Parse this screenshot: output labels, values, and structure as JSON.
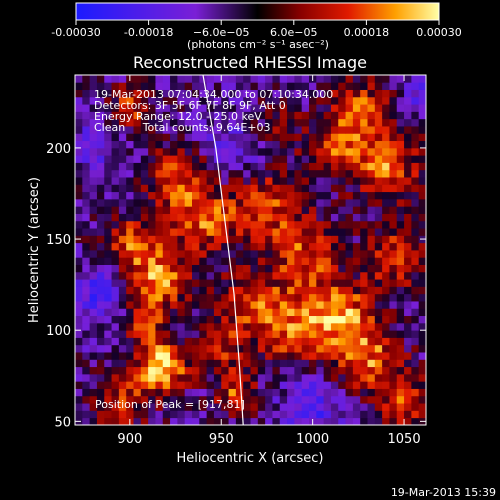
{
  "chart_data": {
    "type": "heatmap",
    "title": "Reconstructed RHESSI Image",
    "xlabel": "Heliocentric X (arcsec)",
    "ylabel": "Heliocentric Y (arcsec)",
    "xlim": [
      870,
      1062
    ],
    "ylim": [
      48,
      240
    ],
    "x_ticks": [
      900,
      950,
      1000,
      1050
    ],
    "y_ticks": [
      50,
      100,
      150,
      200
    ],
    "colorbar": {
      "range": [
        -0.0003,
        0.0003
      ],
      "tick_values": [
        -0.0003,
        -0.00018,
        -6e-05,
        6e-05,
        0.00018,
        0.0003
      ],
      "tick_labels": [
        "-0.00030",
        "-0.00018",
        "−6.0e−05",
        "6.0e−05",
        "0.00018",
        "0.00030"
      ],
      "units_label": "(photons cm⁻² s⁻¹ asec⁻²)"
    },
    "annotations": [
      "19-Mar-2013 07:04:34.000 to 07:10:34.000",
      "Detectors: 3F 5F 6F 7F 8F 9F, Att 0",
      "Energy Range: 12.0 - 25.0 keV",
      "Clean     Total counts: 9.64E+03"
    ],
    "peak_label": "Position of Peak = [917,81]",
    "peak": [
      917,
      81
    ],
    "limb_curve": [
      [
        940,
        240
      ],
      [
        947,
        200
      ],
      [
        952,
        160
      ],
      [
        957,
        120
      ],
      [
        960,
        80
      ],
      [
        962,
        48
      ]
    ],
    "grid_size": 48,
    "hotspots": [
      [
        917,
        80,
        10,
        1.0
      ],
      [
        915,
        128,
        12,
        0.8
      ],
      [
        900,
        150,
        10,
        0.6
      ],
      [
        940,
        160,
        14,
        0.65
      ],
      [
        925,
        185,
        12,
        0.55
      ],
      [
        900,
        222,
        8,
        0.6
      ],
      [
        908,
        105,
        8,
        0.55
      ],
      [
        895,
        60,
        10,
        0.55
      ],
      [
        950,
        90,
        10,
        0.5
      ],
      [
        965,
        115,
        12,
        0.55
      ],
      [
        975,
        170,
        14,
        0.6
      ],
      [
        990,
        100,
        14,
        0.7
      ],
      [
        995,
        140,
        14,
        0.6
      ],
      [
        1015,
        110,
        12,
        0.7
      ],
      [
        1030,
        85,
        14,
        0.7
      ],
      [
        1045,
        140,
        12,
        0.6
      ],
      [
        1040,
        190,
        14,
        0.7
      ],
      [
        1025,
        220,
        12,
        0.65
      ],
      [
        1010,
        200,
        10,
        0.5
      ],
      [
        1050,
        60,
        10,
        0.6
      ],
      [
        980,
        210,
        10,
        0.4
      ],
      [
        958,
        65,
        8,
        0.6
      ]
    ],
    "coldspots": [
      [
        885,
        120,
        10,
        0.9
      ],
      [
        1000,
        60,
        12,
        0.7
      ],
      [
        960,
        200,
        14,
        0.5
      ],
      [
        880,
        200,
        10,
        0.5
      ],
      [
        1060,
        230,
        8,
        0.6
      ]
    ],
    "noise_seed": 7
  },
  "footer": {
    "timestamp": "19-Mar-2013 15:39"
  }
}
